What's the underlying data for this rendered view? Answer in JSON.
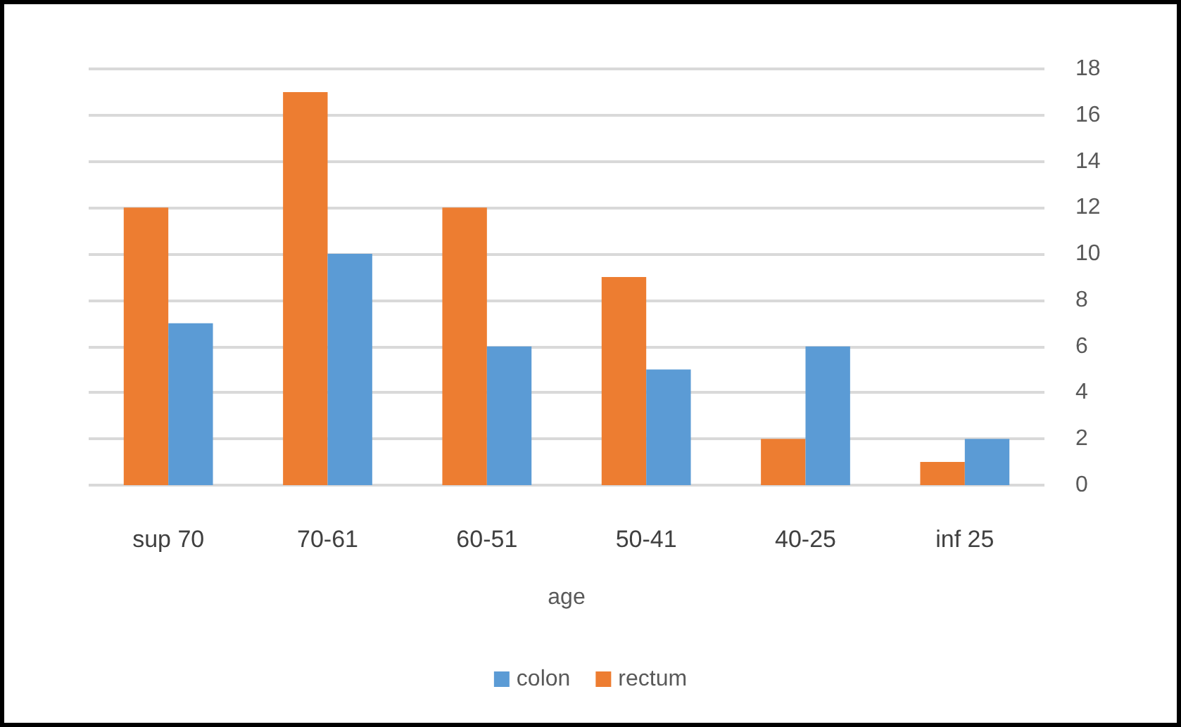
{
  "chart_data": {
    "type": "bar",
    "xlabel": "age",
    "categories": [
      "sup 70",
      "70-61",
      "60-51",
      "50-41",
      "40-25",
      "inf 25"
    ],
    "series": [
      {
        "name": "rectum",
        "color": "#ed7d31",
        "values": [
          12,
          17,
          12,
          9,
          2,
          1
        ]
      },
      {
        "name": "colon",
        "color": "#5b9bd5",
        "values": [
          7,
          10,
          6,
          5,
          6,
          2
        ]
      }
    ],
    "ylim": [
      0,
      18
    ],
    "yticks": [
      0,
      2,
      4,
      6,
      8,
      10,
      12,
      14,
      16,
      18
    ],
    "grid": "y",
    "legend": "bottom"
  }
}
